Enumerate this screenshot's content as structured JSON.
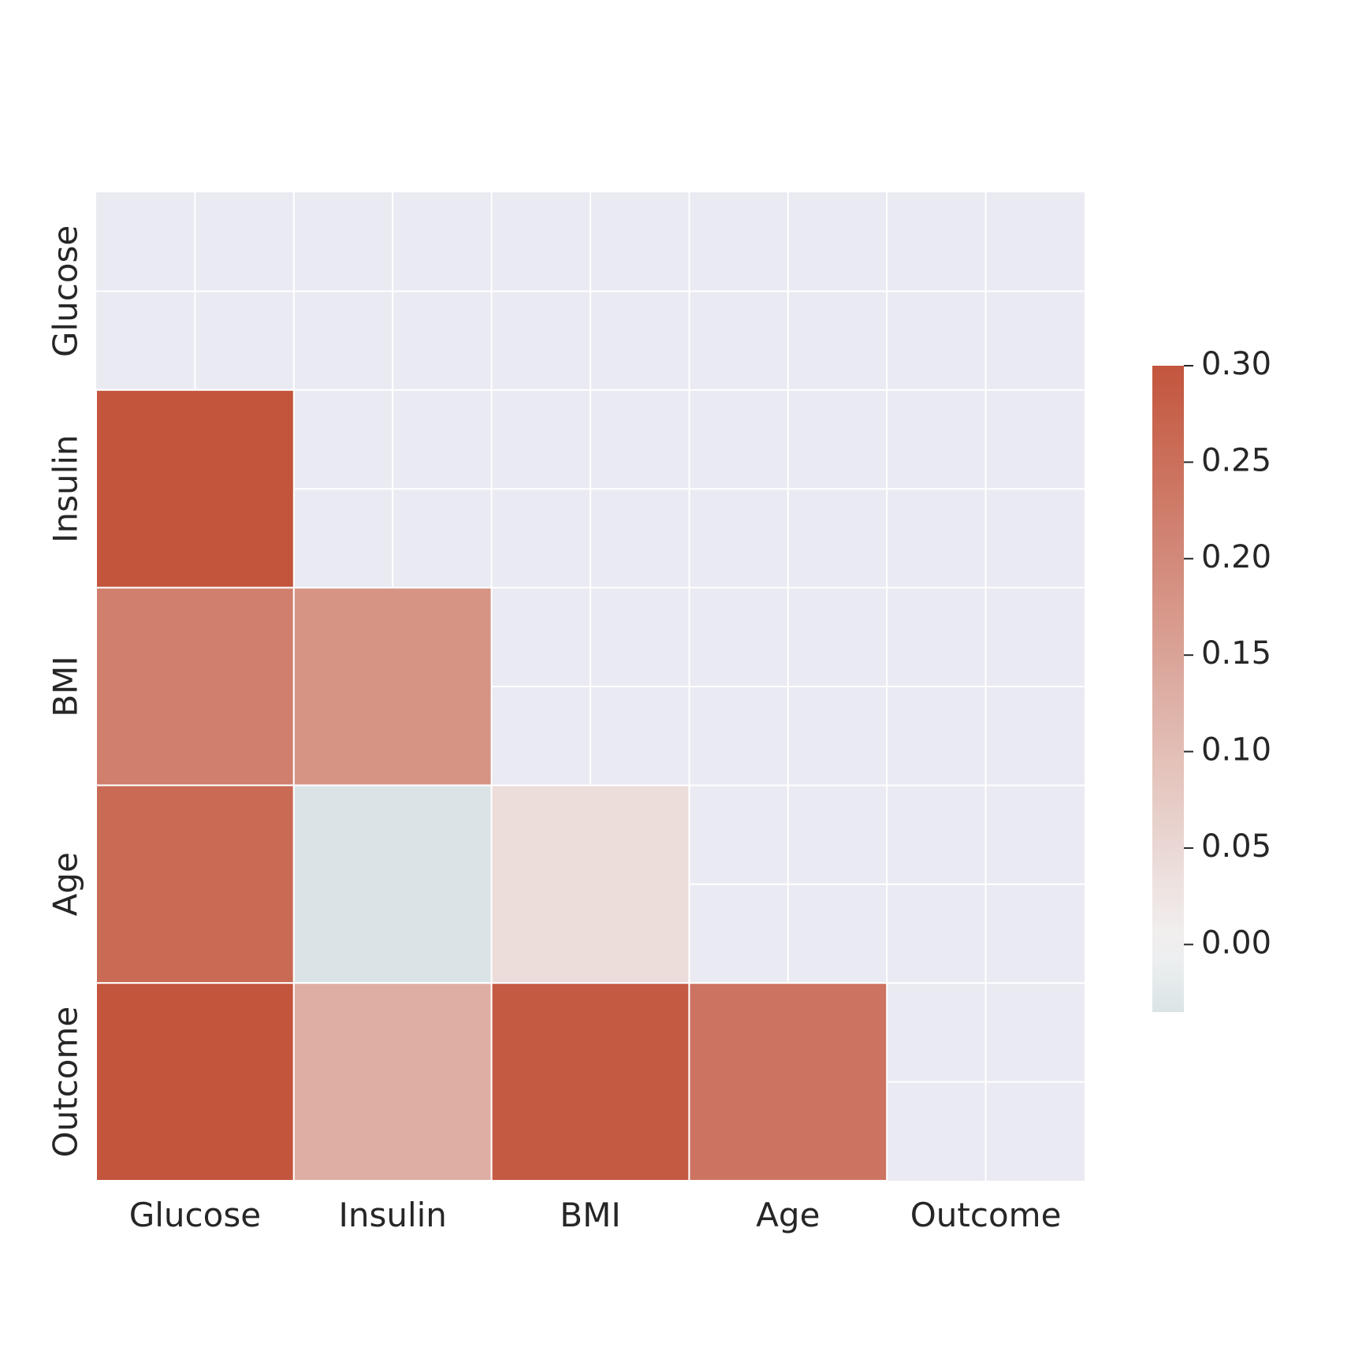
{
  "chart_data": {
    "type": "heatmap",
    "title": "",
    "xlabel": "",
    "ylabel": "",
    "x_categories": [
      "Glucose",
      "Insulin",
      "BMI",
      "Age",
      "Outcome"
    ],
    "y_categories": [
      "Glucose",
      "Insulin",
      "BMI",
      "Age",
      "Outcome"
    ],
    "mask": "upper-triangle-including-diagonal",
    "values": [
      [
        null,
        null,
        null,
        null,
        null
      ],
      [
        0.33,
        null,
        null,
        null,
        null
      ],
      [
        0.22,
        0.18,
        null,
        null,
        null
      ],
      [
        0.26,
        -0.04,
        0.04,
        null,
        null
      ],
      [
        0.47,
        0.13,
        0.29,
        0.24,
        null
      ]
    ],
    "colorbar": {
      "vmin": -0.035,
      "vmax": 0.3,
      "ticks": [
        "0.30",
        "0.25",
        "0.20",
        "0.15",
        "0.10",
        "0.05",
        "0.00"
      ],
      "tick_values": [
        0.3,
        0.25,
        0.2,
        0.15,
        0.1,
        0.05,
        0.0
      ],
      "placement": "right"
    },
    "grid": true,
    "colors": {
      "high": "#c3553d",
      "mid": "#f2f2f2",
      "low": "#dae4e6",
      "masked_background": "#eaeaf2",
      "grid_lines": "#ffffff"
    }
  }
}
